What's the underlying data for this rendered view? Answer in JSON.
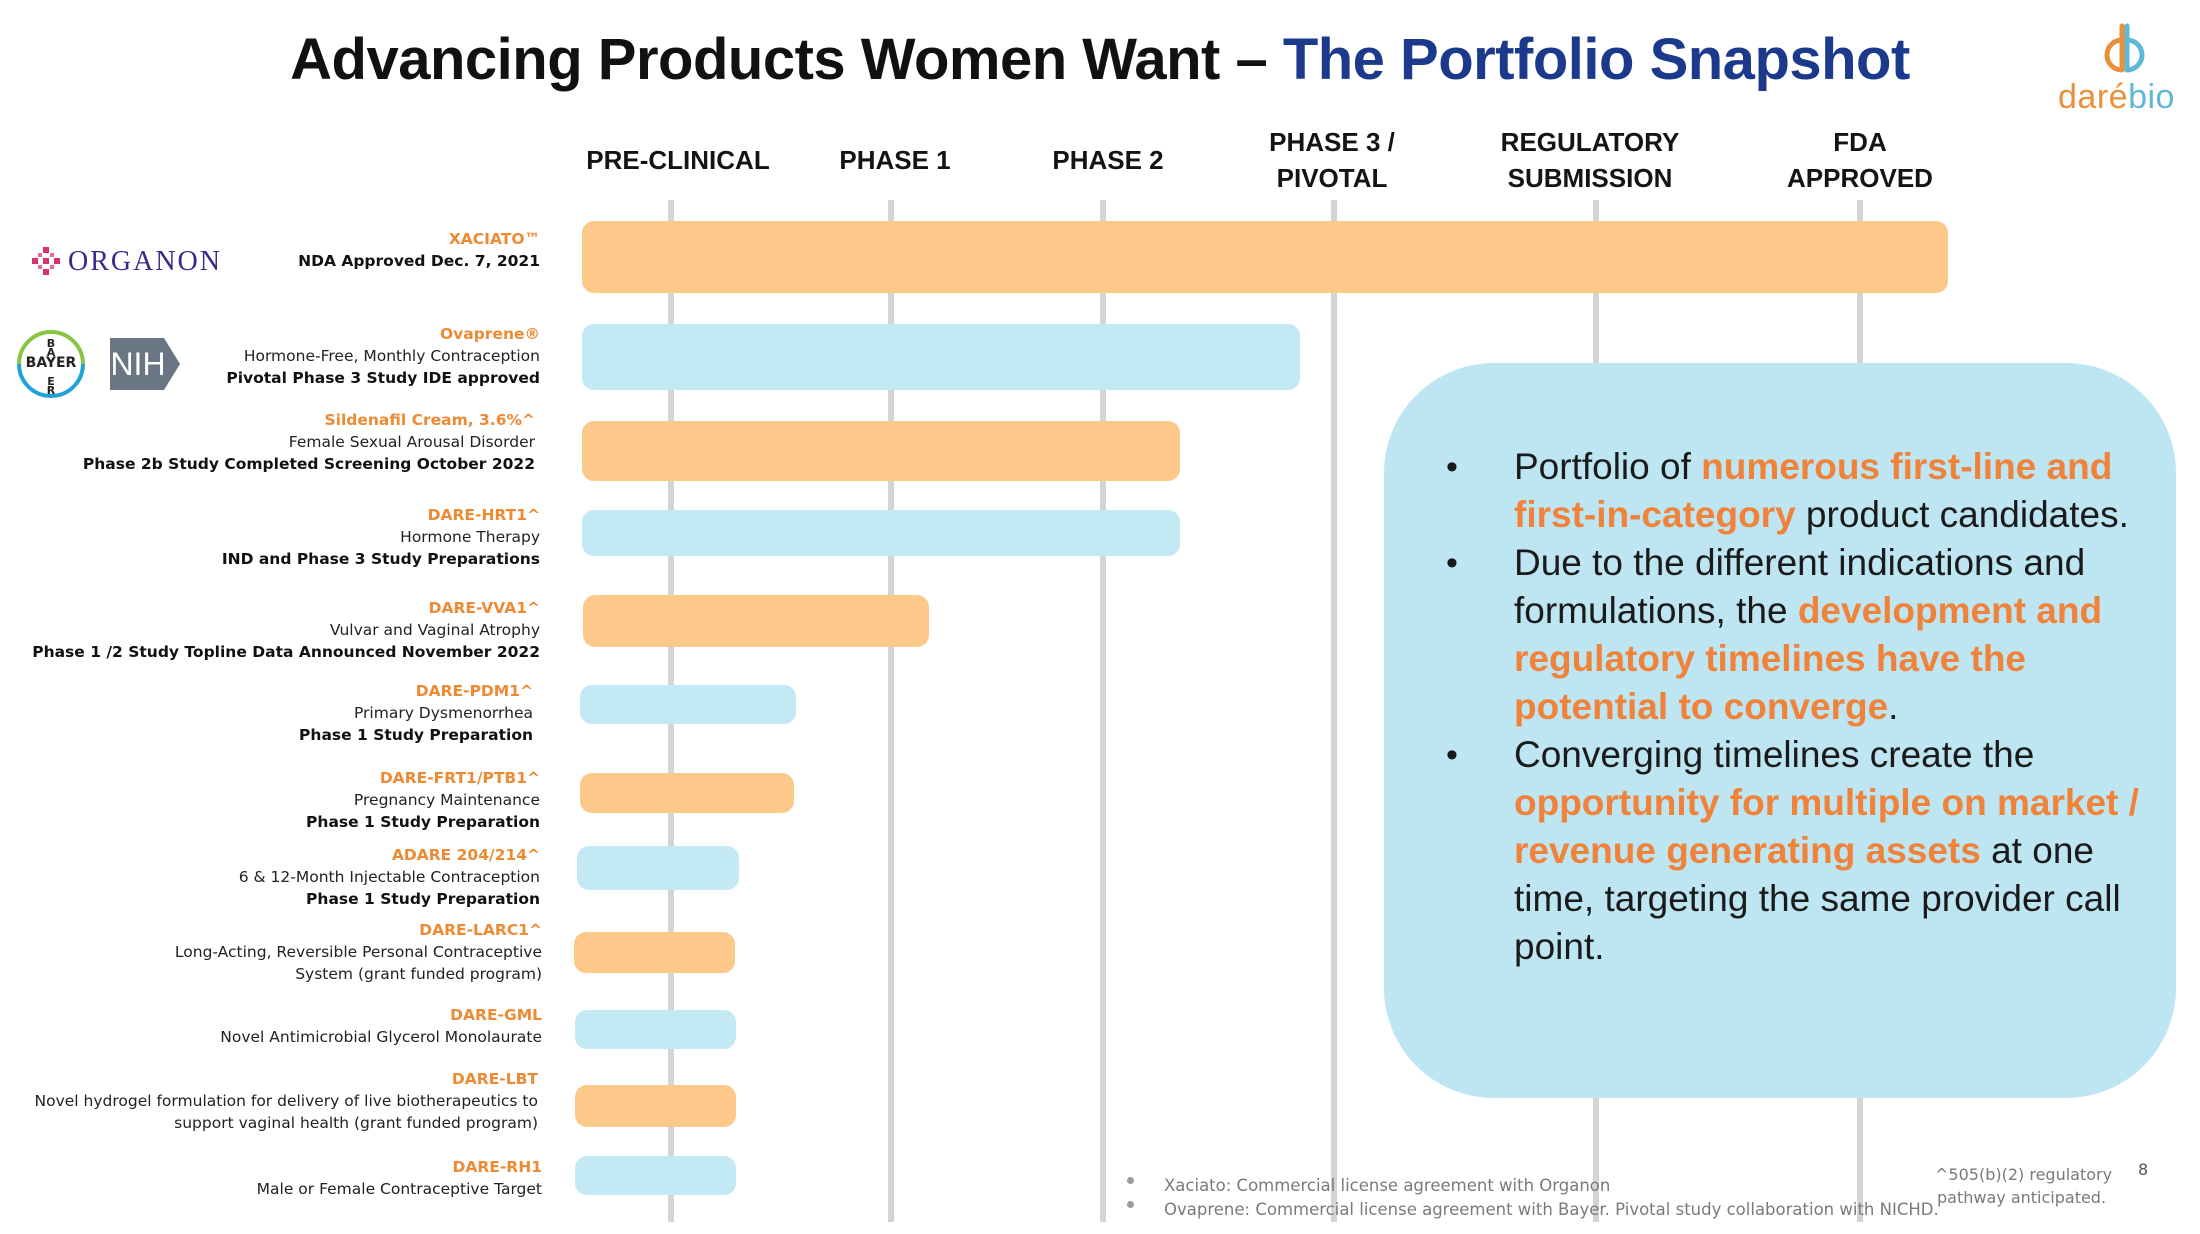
{
  "title": {
    "part1": "Advancing Products Women Want – ",
    "part2": "The Portfolio Snapshot"
  },
  "logo": {
    "text_primary": "daré",
    "text_secondary": "bio"
  },
  "phases": [
    {
      "line1": "PRE-CLINICAL",
      "line2": ""
    },
    {
      "line1": "PHASE 1",
      "line2": ""
    },
    {
      "line1": "PHASE 2",
      "line2": ""
    },
    {
      "line1": "PHASE 3 /",
      "line2": "PIVOTAL"
    },
    {
      "line1": "REGULATORY",
      "line2": "SUBMISSION"
    },
    {
      "line1": "FDA",
      "line2": "APPROVED"
    }
  ],
  "sponsors": {
    "organon": "ORGANON",
    "bayer": "BAYER",
    "nih": "NIH"
  },
  "pipeline": [
    {
      "name": "XACIATO™",
      "desc": "",
      "status": "NDA Approved Dec. 7, 2021",
      "stage": "FDA Approved",
      "progress": 1.0,
      "color": "#fdc98b"
    },
    {
      "name": "Ovaprene®",
      "desc": "Hormone-Free, Monthly Contraception",
      "status": "Pivotal Phase 3 Study IDE approved",
      "stage": "Phase 3 / Pivotal",
      "progress": 0.52,
      "color": "#c2e9f4"
    },
    {
      "name": "Sildenafil Cream, 3.6%^",
      "desc": "Female Sexual Arousal Disorder",
      "status": "Phase 2b Study Completed Screening October 2022",
      "stage": "Phase 2",
      "progress": 0.44,
      "color": "#fdc98b"
    },
    {
      "name": "DARE-HRT1^",
      "desc": "Hormone Therapy",
      "status": "IND and Phase 3 Study Preparations",
      "stage": "Phase 2",
      "progress": 0.44,
      "color": "#c2e9f4"
    },
    {
      "name": "DARE-VVA1^",
      "desc": "Vulvar and Vaginal Atrophy",
      "status": "Phase 1 /2 Study Topline Data Announced November 2022",
      "stage": "Phase 1",
      "progress": 0.25,
      "color": "#fdc98b"
    },
    {
      "name": "DARE-PDM1^",
      "desc": "Primary Dysmenorrhea",
      "status": "Phase 1 Study Preparation",
      "stage": "Pre-Clinical",
      "progress": 0.16,
      "color": "#c2e9f4"
    },
    {
      "name": "DARE-FRT1/PTB1^",
      "desc": "Pregnancy Maintenance",
      "status": "Phase 1 Study Preparation",
      "stage": "Pre-Clinical",
      "progress": 0.16,
      "color": "#fdc98b"
    },
    {
      "name": "ADARE 204/214^",
      "desc": "6 & 12-Month  Injectable Contraception",
      "status": "Phase 1 Study Preparation",
      "stage": "Pre-Clinical",
      "progress": 0.12,
      "color": "#c2e9f4"
    },
    {
      "name": "DARE-LARC1^",
      "desc": "Long-Acting, Reversible Personal Contraceptive",
      "status": "System (grant funded program)",
      "stage": "Pre-Clinical",
      "progress": 0.12,
      "color": "#fdc98b"
    },
    {
      "name": "DARE-GML",
      "desc": "Novel Antimicrobial Glycerol Monolaurate",
      "status": "",
      "stage": "Pre-Clinical",
      "progress": 0.12,
      "color": "#c2e9f4"
    },
    {
      "name": "DARE-LBT",
      "desc": "Novel hydrogel formulation for delivery of live biotherapeutics to",
      "status": "support vaginal health (grant funded program)",
      "stage": "Pre-Clinical",
      "progress": 0.12,
      "color": "#fdc98b"
    },
    {
      "name": "DARE-RH1",
      "desc": "Male or Female Contraceptive Target",
      "status": "",
      "stage": "Pre-Clinical",
      "progress": 0.12,
      "color": "#c2e9f4"
    }
  ],
  "callout": {
    "b1": {
      "t1": "Portfolio of ",
      "h1": "numerous first-line and first-in-category",
      "t2": " product candidates."
    },
    "b2": {
      "t1": " Due to the different indications and formulations, the ",
      "h1": "development and regulatory timelines have the potential to converge",
      "t2": "."
    },
    "b3": {
      "t1": "Converging timelines create the ",
      "h1": "opportunity for multiple on market / revenue generating assets",
      "t2": " at one time, targeting the same provider call point."
    }
  },
  "footnotes": {
    "line1": "Xaciato: Commercial license agreement with Organon",
    "line2": "Ovaprene: Commercial license agreement with Bayer.  Pivotal study collaboration with NICHD.",
    "reg1": "^505(b)(2) regulatory",
    "reg2": "pathway anticipated.",
    "page": "8"
  },
  "colors": {
    "orange_bar": "#fdc98b",
    "blue_bar": "#c2e9f4",
    "highlight": "#f0823a",
    "title_blue": "#1b3a8c",
    "callout_bg": "#bde6f2"
  }
}
